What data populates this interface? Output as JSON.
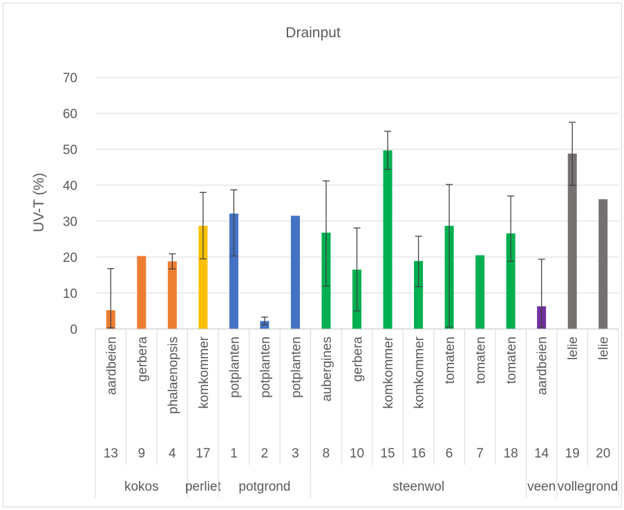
{
  "chart_data": {
    "type": "bar",
    "title": "Drainput",
    "ylabel": "UV-T (%)",
    "xlabel": "",
    "ylim": [
      0,
      70
    ],
    "yticks": [
      0,
      10,
      20,
      30,
      40,
      50,
      60,
      70
    ],
    "grid": true,
    "legend": "none",
    "bars": [
      {
        "crop": "aardbeien",
        "sample": "13",
        "group": "kokos",
        "value": 5.2,
        "err_low": 0.3,
        "err_high": 16.8,
        "color": "#ed7d31"
      },
      {
        "crop": "gerbera",
        "sample": "9",
        "group": "kokos",
        "value": 20.3,
        "err_low": 20.3,
        "err_high": 20.3,
        "color": "#ed7d31"
      },
      {
        "crop": "phalaenopsis",
        "sample": "4",
        "group": "kokos",
        "value": 18.8,
        "err_low": 16.7,
        "err_high": 20.9,
        "color": "#ed7d31"
      },
      {
        "crop": "komkommer",
        "sample": "17",
        "group": "perliet",
        "value": 28.7,
        "err_low": 19.5,
        "err_high": 38.0,
        "color": "#ffc000"
      },
      {
        "crop": "potplanten",
        "sample": "1",
        "group": "potgrond",
        "value": 32.1,
        "err_low": 20.3,
        "err_high": 38.7,
        "color": "#4472c4"
      },
      {
        "crop": "potplanten",
        "sample": "2",
        "group": "potgrond",
        "value": 2.2,
        "err_low": 1.2,
        "err_high": 3.3,
        "color": "#4472c4"
      },
      {
        "crop": "potplanten",
        "sample": "3",
        "group": "potgrond",
        "value": 31.5,
        "err_low": 31.5,
        "err_high": 31.5,
        "color": "#4472c4"
      },
      {
        "crop": "aubergines",
        "sample": "8",
        "group": "steenwol",
        "value": 26.8,
        "err_low": 11.9,
        "err_high": 41.2,
        "color": "#00b050"
      },
      {
        "crop": "gerbera",
        "sample": "10",
        "group": "steenwol",
        "value": 16.5,
        "err_low": 5.0,
        "err_high": 28.1,
        "color": "#00b050"
      },
      {
        "crop": "komkommer",
        "sample": "15",
        "group": "steenwol",
        "value": 49.7,
        "err_low": 44.4,
        "err_high": 55.0,
        "color": "#00b050"
      },
      {
        "crop": "komkommer",
        "sample": "16",
        "group": "steenwol",
        "value": 18.9,
        "err_low": 11.8,
        "err_high": 25.8,
        "color": "#00b050"
      },
      {
        "crop": "tomaten",
        "sample": "6",
        "group": "steenwol",
        "value": 28.7,
        "err_low": 0.5,
        "err_high": 40.2,
        "color": "#00b050"
      },
      {
        "crop": "tomaten",
        "sample": "7",
        "group": "steenwol",
        "value": 20.5,
        "err_low": 20.5,
        "err_high": 20.5,
        "color": "#00b050"
      },
      {
        "crop": "tomaten",
        "sample": "18",
        "group": "steenwol",
        "value": 26.6,
        "err_low": 18.8,
        "err_high": 37.0,
        "color": "#00b050"
      },
      {
        "crop": "aardbeien",
        "sample": "14",
        "group": "veen",
        "value": 6.3,
        "err_low": 0.5,
        "err_high": 19.4,
        "color": "#7030a0"
      },
      {
        "crop": "lelie",
        "sample": "19",
        "group": "vollegrond",
        "value": 48.8,
        "err_low": 40.0,
        "err_high": 57.5,
        "color": "#767171"
      },
      {
        "crop": "lelie",
        "sample": "20",
        "group": "vollegrond",
        "value": 36.1,
        "err_low": 36.1,
        "err_high": 36.1,
        "color": "#767171"
      }
    ],
    "groups": [
      "kokos",
      "perliet",
      "potgrond",
      "steenwol",
      "veen",
      "vollegrond"
    ]
  }
}
